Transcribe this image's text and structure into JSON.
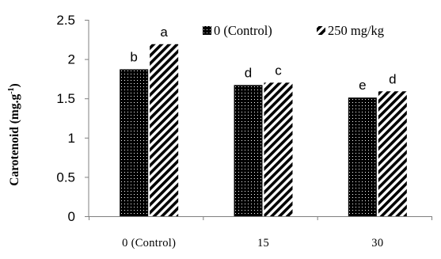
{
  "chart_data": {
    "type": "bar",
    "categories": [
      "0 (Control)",
      "15",
      "30"
    ],
    "series": [
      {
        "name": "0 (Control)",
        "pattern": "dotted-black",
        "values": [
          1.87,
          1.67,
          1.51
        ],
        "letters": [
          "b",
          "d",
          "e"
        ]
      },
      {
        "name": "250 mg/kg",
        "pattern": "diagonal-stripes",
        "values": [
          2.19,
          1.7,
          1.59
        ],
        "letters": [
          "a",
          "c",
          "d"
        ]
      }
    ],
    "ylabel": "Carotenoid (mg.g",
    "ylabel_superscript": "-1",
    "ylabel_suffix": ")",
    "xlabel": "",
    "ylim": [
      0,
      2.5
    ],
    "yticks": [
      "0",
      "0.5",
      "1",
      "1.5",
      "2",
      "2.5"
    ],
    "ytick_values": [
      0,
      0.5,
      1,
      1.5,
      2,
      2.5
    ],
    "legend_position": "top-right",
    "grid": false,
    "colors": {
      "bar_dark": "#000000",
      "bar_light": "#ffffff",
      "axis": "#808080"
    }
  }
}
